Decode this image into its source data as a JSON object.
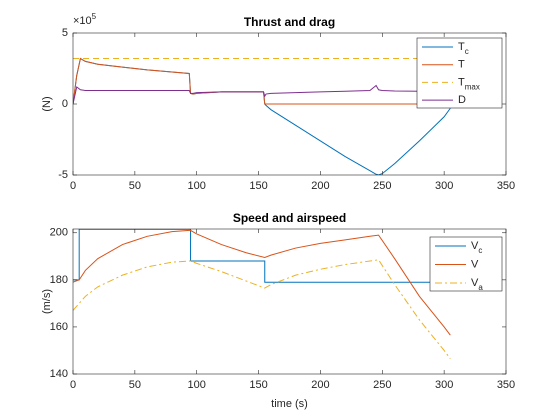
{
  "chart_data": [
    {
      "type": "line",
      "title": "Thrust and drag",
      "ylabel": "(N)",
      "exponent": {
        "base": "×10",
        "power": "5"
      },
      "x": [
        0,
        3,
        6,
        10,
        20,
        40,
        60,
        80,
        94,
        95,
        97,
        100,
        120,
        140,
        154,
        155,
        156,
        160,
        180,
        200,
        220,
        240,
        245,
        247,
        250,
        260,
        280,
        300,
        305
      ],
      "series": [
        {
          "name": "T",
          "sub": "c",
          "color": "#0072BD",
          "style": "solid",
          "values": [
            0,
            2,
            3.2,
            3.0,
            2.8,
            2.6,
            2.4,
            2.25,
            2.15,
            0.75,
            0.7,
            0.75,
            0.85,
            0.85,
            0.85,
            0,
            -0.1,
            -0.4,
            -1.5,
            -2.6,
            -3.7,
            -4.7,
            -4.95,
            -5,
            -4.9,
            -4.2,
            -2.6,
            -0.9,
            -0.3
          ]
        },
        {
          "name": "T",
          "color": "#D95319",
          "style": "solid",
          "values": [
            0,
            2,
            3.2,
            3.0,
            2.8,
            2.6,
            2.4,
            2.25,
            2.15,
            0.75,
            0.7,
            0.75,
            0.85,
            0.85,
            0.85,
            0,
            0,
            0,
            0,
            0,
            0,
            0,
            0,
            0,
            0,
            0,
            0,
            0,
            0
          ]
        },
        {
          "name": "T",
          "sub": "max",
          "color": "#EDB120",
          "style": "dashed",
          "values": [
            3.2,
            3.2,
            3.2,
            3.2,
            3.2,
            3.2,
            3.2,
            3.2,
            3.2,
            3.2,
            3.2,
            3.2,
            3.2,
            3.2,
            3.2,
            3.2,
            3.2,
            3.2,
            3.2,
            3.2,
            3.2,
            3.2,
            3.2,
            3.2,
            3.2,
            3.2,
            3.2,
            3.2,
            3.2
          ]
        },
        {
          "name": "D",
          "color": "#7E2F8E",
          "style": "solid",
          "values": [
            0,
            1.2,
            1.0,
            0.95,
            0.95,
            0.95,
            0.95,
            0.95,
            0.95,
            0.75,
            0.75,
            0.8,
            0.85,
            0.85,
            0.85,
            0.55,
            0.7,
            0.75,
            0.8,
            0.85,
            0.9,
            0.95,
            1.3,
            1.0,
            0.95,
            0.92,
            0.9,
            0.88,
            0.88
          ]
        }
      ],
      "xlim": [
        0,
        350
      ],
      "xticks": [
        0,
        50,
        100,
        150,
        200,
        250,
        300,
        350
      ],
      "ylim": [
        -5,
        5
      ],
      "yticks": [
        -5,
        0,
        5
      ],
      "legend": "northeast"
    },
    {
      "type": "line",
      "title": "Speed and airspeed",
      "ylabel": "(m/s)",
      "xlabel": "time (s)",
      "x": [
        0,
        5,
        5,
        10,
        20,
        40,
        60,
        80,
        94,
        95,
        95,
        100,
        120,
        140,
        155,
        155,
        160,
        180,
        200,
        220,
        240,
        247,
        260,
        280,
        300,
        305
      ],
      "series": [
        {
          "name": "V",
          "sub": "c",
          "color": "#0072BD",
          "style": "solid",
          "values": [
            180,
            180,
            201.5,
            201.5,
            201.5,
            201.5,
            201.5,
            201.5,
            201.5,
            201.5,
            188,
            188,
            188,
            188,
            188,
            179,
            179,
            179,
            179,
            179,
            179,
            179,
            179,
            179,
            179,
            179
          ]
        },
        {
          "name": "V",
          "color": "#D95319",
          "style": "solid",
          "values": [
            179,
            180,
            180,
            184,
            189,
            195,
            198.5,
            200.5,
            201,
            201,
            201,
            199.5,
            195,
            191.5,
            189.5,
            189.5,
            190.5,
            193.5,
            195.5,
            197,
            198.5,
            199,
            189,
            173,
            160,
            156.5
          ]
        },
        {
          "name": "V",
          "sub": "a",
          "color": "#EDB120",
          "style": "dashdot",
          "values": [
            167,
            170,
            170,
            173,
            177,
            182,
            185.5,
            187.5,
            188,
            188,
            188,
            187,
            183.5,
            179.5,
            176.5,
            176.5,
            178,
            182,
            184.5,
            186.5,
            188,
            188.5,
            178,
            163,
            150,
            146.5
          ]
        }
      ],
      "xlim": [
        0,
        350
      ],
      "xticks": [
        0,
        50,
        100,
        150,
        200,
        250,
        300,
        350
      ],
      "ylim": [
        140,
        201.6
      ],
      "yticks": [
        140,
        160,
        180,
        200
      ],
      "legend": "northeast"
    }
  ]
}
